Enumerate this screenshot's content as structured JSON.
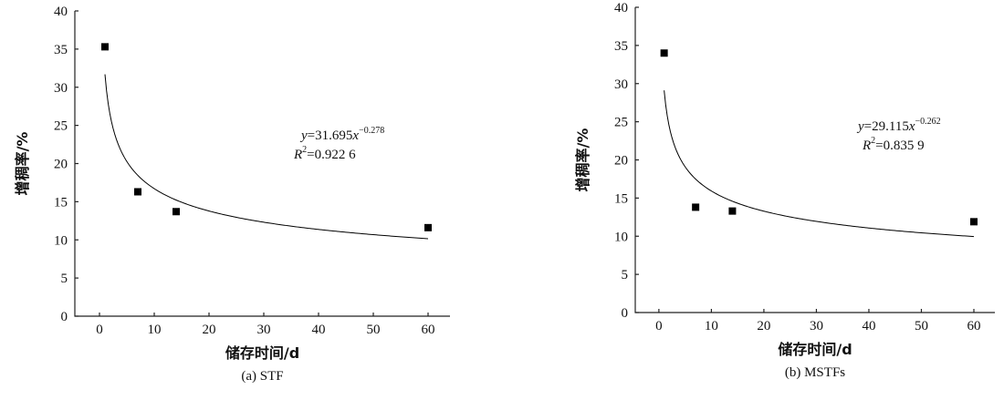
{
  "chart_data": [
    {
      "type": "scatter",
      "caption": "(a) STF",
      "x_label": "储存时间/d",
      "y_label": "增稠率/%",
      "x": [
        1,
        7,
        14,
        60
      ],
      "values": [
        35.3,
        16.3,
        13.7,
        11.6
      ],
      "color": "#000000",
      "fit": {
        "a": 31.695,
        "b": -0.278
      },
      "equation": [
        "y",
        "=31.695",
        "x",
        "−0.278"
      ],
      "r_squared": [
        "R",
        "2",
        "=0.922 6"
      ],
      "xlim": [
        -4.5,
        64
      ],
      "ylim": [
        0,
        40
      ],
      "xticks": [
        0,
        10,
        20,
        30,
        40,
        50,
        60
      ],
      "yticks": [
        0,
        5,
        10,
        15,
        20,
        25,
        30,
        35,
        40
      ]
    },
    {
      "type": "scatter",
      "caption": "(b) MSTFs",
      "x_label": "储存时间/d",
      "y_label": "增稠率/%",
      "x": [
        1,
        7,
        14,
        60
      ],
      "values": [
        34.0,
        13.8,
        13.3,
        11.9
      ],
      "color": "#000000",
      "fit": {
        "a": 29.115,
        "b": -0.262
      },
      "equation": [
        "y",
        "=29.115",
        "x",
        "−0.262"
      ],
      "r_squared": [
        "R",
        "2",
        "=0.835 9"
      ],
      "xlim": [
        -4.5,
        64
      ],
      "ylim": [
        0,
        40
      ],
      "xticks": [
        0,
        10,
        20,
        30,
        40,
        50,
        60
      ],
      "yticks": [
        0,
        5,
        10,
        15,
        20,
        25,
        30,
        35,
        40
      ]
    }
  ]
}
